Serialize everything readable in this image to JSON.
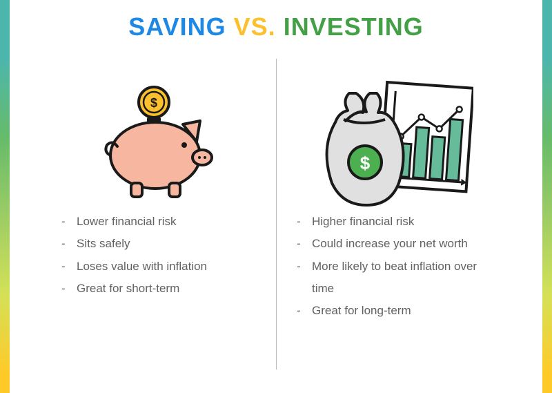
{
  "title": {
    "word1": "SAVING",
    "word2": "VS.",
    "word3": "INVESTING",
    "color1": "#1e88e5",
    "color2": "#fbc02d",
    "color3": "#43a047",
    "fontsize": 36
  },
  "saving": {
    "bullets": [
      "Lower financial risk",
      "Sits safely",
      "Loses value with inflation",
      "Great for short-term"
    ],
    "icon_colors": {
      "pig_body": "#f7b6a0",
      "pig_outline": "#1a1a1a",
      "coin_fill": "#fbc02d",
      "coin_outline": "#1a1a1a"
    }
  },
  "investing": {
    "bullets": [
      "Higher financial risk",
      "Could increase your net worth",
      "More likely to beat inflation over time",
      "Great for long-term"
    ],
    "icon_colors": {
      "bag_fill": "#e0e0e0",
      "bag_outline": "#1a1a1a",
      "badge_fill": "#4caf50",
      "chart_bar_fill": "#66bb9a",
      "chart_paper": "#ffffff"
    }
  },
  "bullet_text_color": "#616161",
  "bullet_fontsize": 17,
  "divider_color": "#bdbdbd",
  "background": "#ffffff",
  "border_gradient": [
    "#4db6ac",
    "#66bb6a",
    "#9ccc65",
    "#d4e157",
    "#ffca28"
  ]
}
